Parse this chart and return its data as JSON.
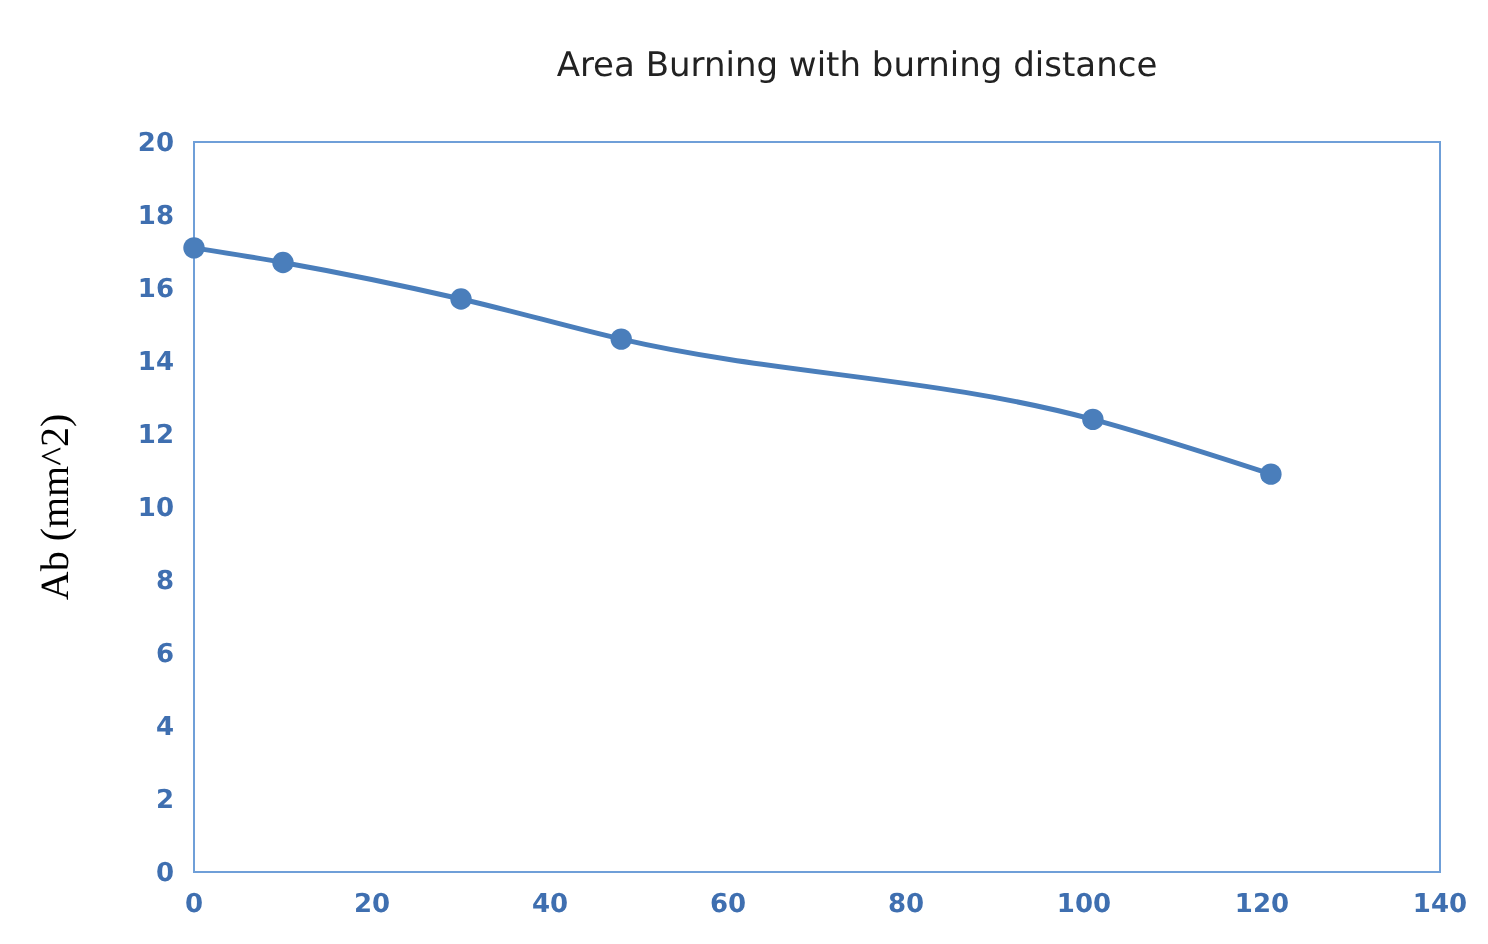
{
  "chart_data": {
    "type": "line",
    "title": "Area Burning with burning distance",
    "ylabel": "Ab (mm^2)",
    "x": [
      0,
      10,
      30,
      48,
      101,
      121
    ],
    "series": [
      {
        "color": "#4a7ebb",
        "values": [
          17.1,
          16.7,
          15.7,
          14.6,
          12.4,
          10.9
        ]
      }
    ],
    "xlim": [
      0,
      140
    ],
    "xticks": [
      0,
      20,
      40,
      60,
      80,
      100,
      120,
      140
    ],
    "ylim": [
      0,
      20
    ],
    "yticks": [
      0,
      2,
      4,
      6,
      8,
      10,
      12,
      14,
      16,
      18,
      20
    ],
    "grid": false,
    "marker": "circle",
    "line_style": "solid"
  }
}
